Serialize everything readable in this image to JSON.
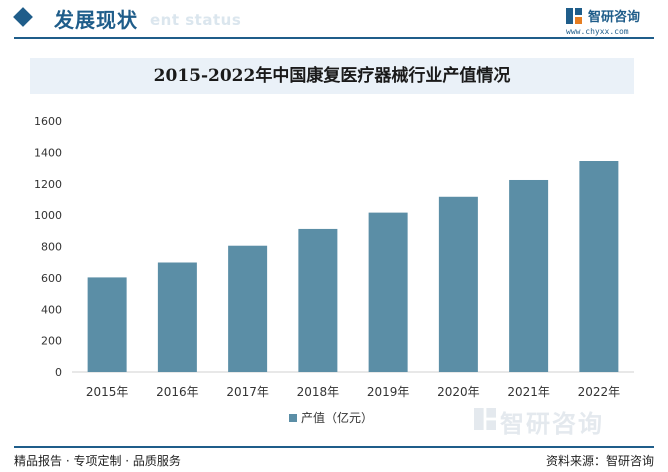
{
  "header": {
    "section_title": "发展现状",
    "section_subtitle": "ent status",
    "brand_name": "智研咨询",
    "brand_url": "www.chyxx.com"
  },
  "chart_data": {
    "type": "bar",
    "title": "2015-2022年中国康复医疗器械行业产值情况",
    "categories": [
      "2015年",
      "2016年",
      "2017年",
      "2018年",
      "2019年",
      "2020年",
      "2021年",
      "2022年"
    ],
    "series": [
      {
        "name": "产值（亿元）",
        "values": [
          603,
          698,
          805,
          912,
          1016,
          1117,
          1224,
          1345
        ]
      }
    ],
    "y_ticks": [
      "0",
      "200",
      "400",
      "600",
      "800",
      "1000",
      "1200",
      "1400",
      "1600"
    ],
    "ylim": [
      0,
      1600
    ],
    "xlabel": "",
    "ylabel": "",
    "grid": false,
    "legend_position": "bottom-center",
    "bar_color": "#5b8ea6"
  },
  "footer": {
    "left_text": "精品报告 · 专项定制 · 品质服务",
    "right_text": "资料来源：智研咨询"
  },
  "watermark": {
    "text": "智研咨询"
  }
}
